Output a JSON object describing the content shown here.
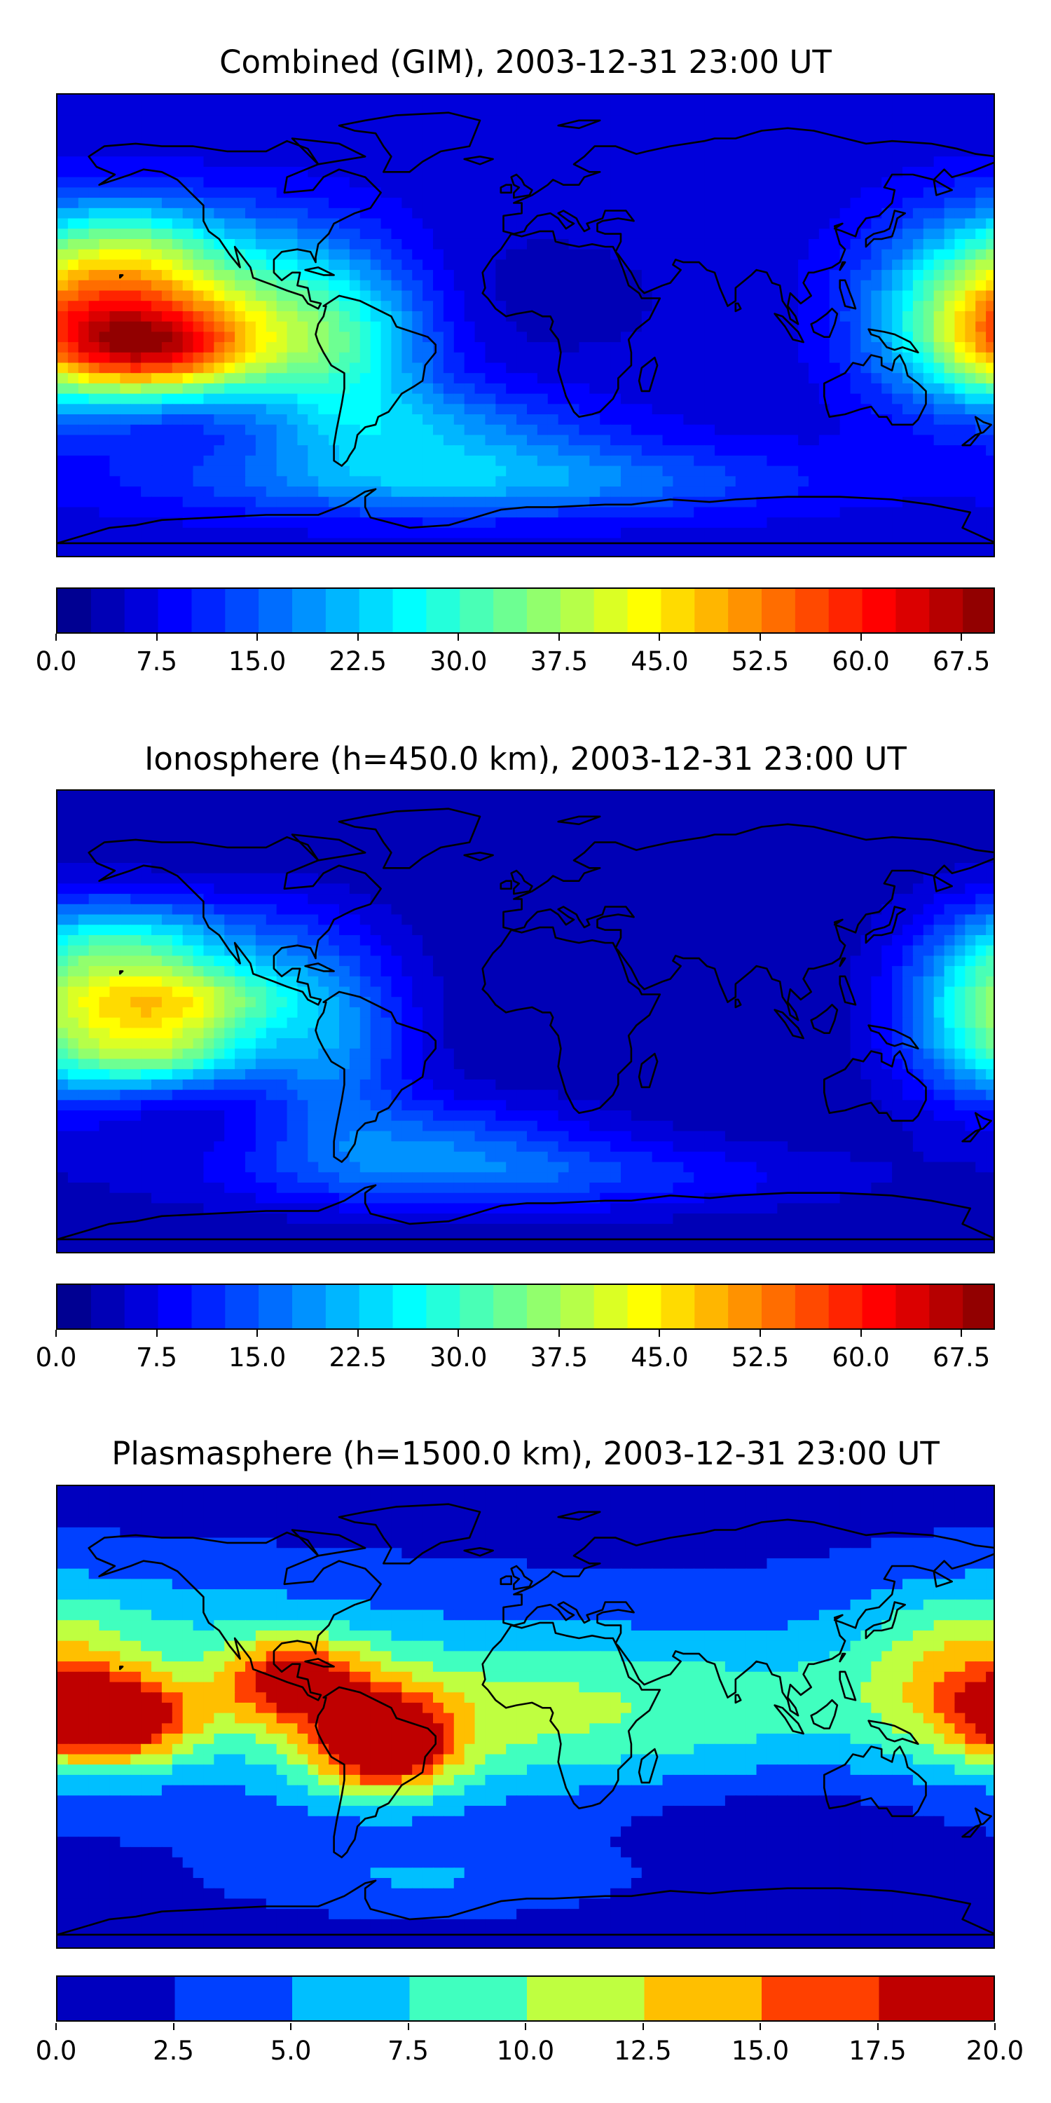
{
  "chart_data": [
    {
      "type": "heatmap",
      "title": "Combined (GIM), 2003-12-31 23:00 UT",
      "colorbar": {
        "min": 0.0,
        "max": 70.0,
        "levels": 28,
        "tick_values": [
          0.0,
          7.5,
          15.0,
          22.5,
          30.0,
          37.5,
          45.0,
          52.5,
          60.0,
          67.5
        ],
        "tick_labels": [
          "0.0",
          "7.5",
          "15.0",
          "22.5",
          "30.0",
          "37.5",
          "45.0",
          "52.5",
          "60.0",
          "67.5"
        ],
        "colormap": "jet"
      },
      "field_features": [
        {
          "region": "central/eastern Pacific, ~20S to 10N",
          "approx_value": 62
        },
        {
          "region": "central Pacific, ~5N",
          "approx_value": 58
        },
        {
          "region": "western Pacific near 180E, equator",
          "approx_value": 45
        },
        {
          "region": "South America, equatorial",
          "approx_value": 38
        },
        {
          "region": "North Pacific, ~40N",
          "approx_value": 35
        },
        {
          "region": "Africa / Eurasia / Indian Ocean (night side)",
          "approx_value": 7
        }
      ],
      "xlim": [
        -180,
        180
      ],
      "ylim": [
        -90,
        90
      ]
    },
    {
      "type": "heatmap",
      "title": "Ionosphere  (h=450.0 km), 2003-12-31 23:00 UT",
      "colorbar": {
        "min": 0.0,
        "max": 70.0,
        "levels": 28,
        "tick_values": [
          0.0,
          7.5,
          15.0,
          22.5,
          30.0,
          37.5,
          45.0,
          52.5,
          60.0,
          67.5
        ],
        "tick_labels": [
          "0.0",
          "7.5",
          "15.0",
          "22.5",
          "30.0",
          "37.5",
          "45.0",
          "52.5",
          "60.0",
          "67.5"
        ],
        "colormap": "jet"
      },
      "field_features": [
        {
          "region": "central Pacific, ~10N",
          "approx_value": 52
        },
        {
          "region": "central Pacific, ~10S",
          "approx_value": 48
        },
        {
          "region": "North Pacific, ~40N",
          "approx_value": 33
        },
        {
          "region": "western Pacific near 180E",
          "approx_value": 33
        },
        {
          "region": "Africa / Eurasia / Indian Ocean (night side)",
          "approx_value": 4
        }
      ],
      "xlim": [
        -180,
        180
      ],
      "ylim": [
        -90,
        90
      ]
    },
    {
      "type": "heatmap",
      "title": "Plasmasphere (h=1500.0 km), 2003-12-31 23:00 UT",
      "colorbar": {
        "min": 0.0,
        "max": 20.0,
        "levels": 8,
        "tick_values": [
          0.0,
          2.5,
          5.0,
          7.5,
          10.0,
          12.5,
          15.0,
          17.5,
          20.0
        ],
        "tick_labels": [
          "0.0",
          "2.5",
          "5.0",
          "7.5",
          "10.0",
          "12.5",
          "15.0",
          "17.5",
          "20.0"
        ],
        "colormap": "jet"
      },
      "field_features": [
        {
          "region": "central Pacific, ~5S",
          "approx_value": 18
        },
        {
          "region": "South America, Brazil ~10S",
          "approx_value": 18
        },
        {
          "region": "Caribbean / Central America",
          "approx_value": 15
        },
        {
          "region": "tropical band, Africa to Asia",
          "approx_value": 7
        },
        {
          "region": "southern Indian Ocean ~35S",
          "approx_value": 1.5
        },
        {
          "region": "North America / Europe high latitudes",
          "approx_value": 2
        }
      ],
      "xlim": [
        -180,
        180
      ],
      "ylim": [
        -90,
        90
      ]
    }
  ]
}
